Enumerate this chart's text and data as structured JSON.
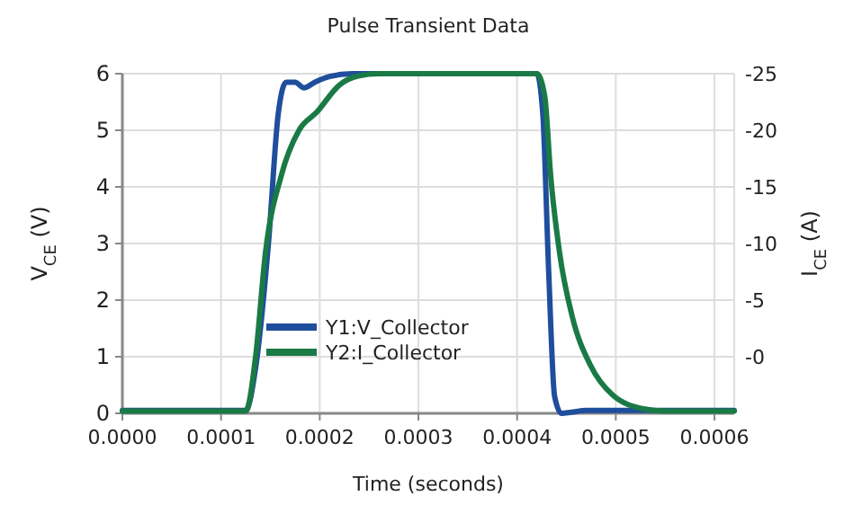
{
  "chart_data": {
    "type": "line",
    "title": "Pulse Transient Data",
    "xlabel": "Time (seconds)",
    "ylabel": "V$_{CE}$ (V)",
    "y2label": "I$_{CE}$ (A)",
    "xlim": [
      0,
      0.00062
    ],
    "xticks": [
      {
        "value": 0,
        "label": "0.0000"
      },
      {
        "value": 0.0001,
        "label": "0.0001"
      },
      {
        "value": 0.0002,
        "label": "0.0002"
      },
      {
        "value": 0.0003,
        "label": "0.0003"
      },
      {
        "value": 0.0004,
        "label": "0.0004"
      },
      {
        "value": 0.0005,
        "label": "0.0005"
      },
      {
        "value": 0.0006,
        "label": "0.0006"
      }
    ],
    "ylim": [
      0,
      6
    ],
    "yticks": [
      0,
      1,
      2,
      3,
      4,
      5,
      6
    ],
    "y2lim": [
      5,
      -25
    ],
    "y2ticks": [
      -25,
      -20,
      -15,
      -10,
      -5,
      {
        "value": 0,
        "label": "-0"
      }
    ],
    "grid": true,
    "legend": "bottom left",
    "line_style": "solid",
    "marker": "none",
    "series": [
      {
        "name": "Y1:V_Collector",
        "color": "#1f4e9c",
        "x": [
          0,
          0.000125,
          0.000135,
          0.000148,
          0.000158,
          0.000166,
          0.000175,
          0.000184,
          0.000195,
          0.00021,
          0.000233,
          0.00042,
          0.000426,
          0.000432,
          0.000438,
          0.000445,
          0.000455,
          0.00047,
          0.00062
        ],
        "values": [
          0.05,
          0.05,
          0.8,
          3,
          5.3,
          5.85,
          5.85,
          5.75,
          5.85,
          5.95,
          6,
          6,
          5.3,
          2.5,
          0.3,
          0,
          0.02,
          0.05,
          0.05
        ]
      },
      {
        "name": "Y2:I_Collector",
        "color": "#1a7a45",
        "axis": "y2",
        "x": [
          0,
          0.000125,
          0.000135,
          0.000145,
          0.000161,
          0.000179,
          0.000197,
          0.00022,
          0.000239,
          0.00026,
          0.00042,
          0.000428,
          0.000434,
          0.000443,
          0.000456,
          0.000474,
          0.000497,
          0.000528,
          0.00055,
          0.00062
        ],
        "values": [
          4.8,
          4.8,
          0,
          -9.2,
          -16,
          -20,
          -21.6,
          -24,
          -24.8,
          -25,
          -25,
          -23,
          -16,
          -9.2,
          -3.5,
          0.7,
          3.4,
          4.6,
          4.8,
          4.8
        ]
      }
    ]
  }
}
